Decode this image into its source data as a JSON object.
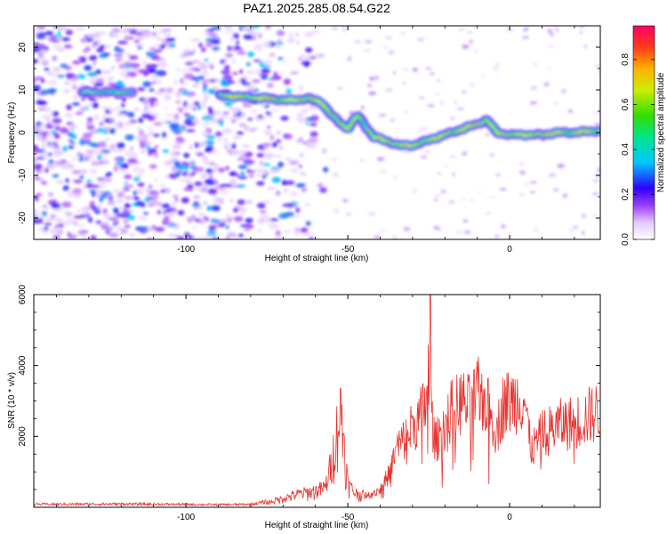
{
  "title": "PAZ1.2025.285.08.54.G22",
  "chart_data": [
    {
      "type": "heatmap",
      "xlabel": "Height of straight line (km)",
      "ylabel": "Frequency (Hz)",
      "xlim": [
        -147,
        28
      ],
      "ylim": [
        -25,
        25
      ],
      "xticks": [
        -100,
        -50,
        0
      ],
      "yticks": [
        -20,
        -10,
        0,
        10,
        20
      ],
      "ridge": {
        "x": [
          -130,
          -120,
          -85,
          -75,
          -68,
          -62,
          -58,
          -55,
          -52,
          -50,
          -47,
          -45,
          -42,
          -38,
          -34,
          -30,
          -26,
          -22,
          -18,
          -14,
          -10,
          -7,
          -4,
          0,
          5,
          10,
          15,
          20,
          28
        ],
        "y": [
          9.5,
          9.5,
          8.5,
          8,
          7.5,
          8,
          7,
          4,
          2,
          1,
          4,
          2,
          -1,
          -2,
          -3,
          -3,
          -2,
          -1,
          0,
          1,
          2,
          3,
          0,
          -0.5,
          -0.5,
          -0.5,
          0,
          0,
          0.5
        ]
      },
      "colorbar": {
        "label": "Normalized spectral amplitude",
        "range": [
          0,
          0.95
        ],
        "ticks": [
          0.0,
          0.2,
          0.4,
          0.6,
          0.8
        ]
      }
    },
    {
      "type": "line",
      "xlabel": "Height of straight line (km)",
      "ylabel": "SNR (10 * v/v)",
      "xlim": [
        -147,
        28
      ],
      "ylim": [
        0,
        6000
      ],
      "xticks": [
        -100,
        -50,
        0
      ],
      "yticks": [
        2000,
        4000,
        6000
      ],
      "line_color": "#e8332f",
      "envelope": {
        "x": [
          -147,
          -120,
          -90,
          -80,
          -75,
          -70,
          -65,
          -60,
          -57,
          -55,
          -53,
          -52,
          -50,
          -48,
          -45,
          -40,
          -37,
          -35,
          -32,
          -30,
          -28,
          -26,
          -25,
          -24,
          -23,
          -21,
          -18,
          -15,
          -12,
          -10,
          -8,
          -6,
          -4,
          -2,
          0,
          2,
          4,
          5,
          6,
          7,
          10,
          15,
          20,
          28
        ],
        "y": [
          80,
          90,
          70,
          80,
          150,
          300,
          450,
          550,
          650,
          1500,
          2800,
          3200,
          800,
          500,
          400,
          600,
          1200,
          2000,
          2400,
          2800,
          3000,
          3500,
          4800,
          3000,
          2200,
          2600,
          3300,
          3600,
          3400,
          3900,
          3700,
          3200,
          2600,
          3500,
          3600,
          3700,
          3800,
          3500,
          2300,
          2000,
          2500,
          2800,
          2900,
          3300
        ]
      }
    }
  ]
}
